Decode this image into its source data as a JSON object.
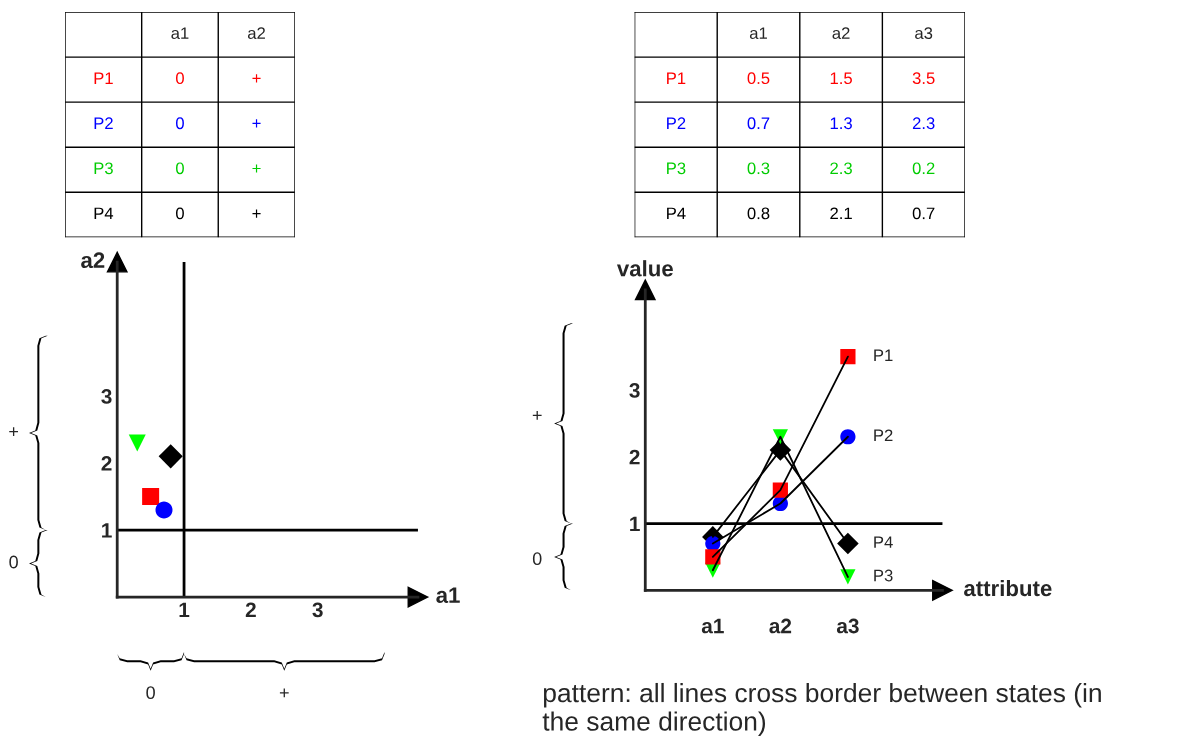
{
  "chart_data": [
    {
      "type": "other",
      "categories": [
        "a1",
        "a2"
      ],
      "y_categories": [
        "P1",
        "P2",
        "P3",
        "P4"
      ],
      "colors": [
        "#ff0000",
        "#0000ff",
        "#00cc00",
        "#000000"
      ],
      "cell_labels": [
        [
          "0",
          "+"
        ],
        [
          "0",
          "+"
        ],
        [
          "0",
          "+"
        ],
        [
          "0",
          "+"
        ]
      ]
    },
    {
      "type": "other",
      "categories": [
        "a1",
        "a2",
        "a3"
      ],
      "y_categories": [
        "P1",
        "P2",
        "P3",
        "P4"
      ],
      "colors": [
        "#ff0000",
        "#0000ff",
        "#00cc00",
        "#000000"
      ],
      "cell_labels": [
        [
          "0.5",
          "1.5",
          "3.5"
        ],
        [
          "0.7",
          "1.3",
          "2.3"
        ],
        [
          "0.3",
          "2.3",
          "0.2"
        ],
        [
          "0.8",
          "2.1",
          "0.7"
        ]
      ]
    },
    {
      "type": "scatter",
      "xlabel": "a1",
      "ylabel": "a2",
      "xlim": [
        0,
        4.5
      ],
      "ylim": [
        0,
        5
      ],
      "xticks": [
        1,
        2,
        3
      ],
      "yticks": [
        1,
        2,
        3
      ],
      "grid": false,
      "series": [
        {
          "color": "#ff0000",
          "marker": "square",
          "x": [
            0.5
          ],
          "values": [
            1.5
          ]
        },
        {
          "color": "#0000ff",
          "marker": "circle",
          "x": [
            0.7
          ],
          "values": [
            1.3
          ]
        },
        {
          "color": "#00ff00",
          "marker": "triangle",
          "x": [
            0.3
          ],
          "values": [
            2.3
          ]
        },
        {
          "color": "#000000",
          "marker": "diamond",
          "x": [
            0.8
          ],
          "values": [
            2.1
          ]
        }
      ],
      "ref_lines": [
        {
          "axis": "x",
          "value": 1
        },
        {
          "axis": "y",
          "value": 1
        }
      ],
      "annotations": [
        "+",
        "0",
        "0",
        "+"
      ]
    },
    {
      "type": "line",
      "xlabel": "attribute",
      "ylabel": "value",
      "categories": [
        "a1",
        "a2",
        "a3"
      ],
      "ylim": [
        0,
        4.5
      ],
      "yticks": [
        1,
        2,
        3
      ],
      "grid": false,
      "series": [
        {
          "name": "P1",
          "color": "#ff0000",
          "marker": "square",
          "values": [
            0.5,
            1.5,
            3.5
          ]
        },
        {
          "name": "P2",
          "color": "#0000ff",
          "marker": "circle",
          "values": [
            0.7,
            1.3,
            2.3
          ]
        },
        {
          "name": "P3",
          "color": "#00ff00",
          "marker": "triangle",
          "values": [
            0.3,
            2.3,
            0.2
          ]
        },
        {
          "name": "P4",
          "color": "#000000",
          "marker": "diamond",
          "values": [
            0.8,
            2.1,
            0.7
          ]
        }
      ],
      "ref_lines": [
        {
          "axis": "y",
          "value": 1
        }
      ],
      "annotations": [
        "+",
        "0",
        "pattern: all lines cross border between states (in the same direction)"
      ]
    }
  ]
}
